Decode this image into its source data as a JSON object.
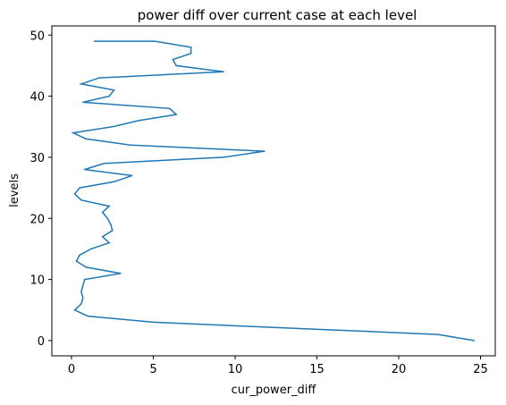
{
  "chart_data": {
    "type": "line",
    "title": "power diff over current case at each level",
    "xlabel": "cur_power_diff",
    "ylabel": "levels",
    "xlim": [
      -1.2,
      25.9
    ],
    "ylim": [
      -2.5,
      51.5
    ],
    "xticks": [
      0,
      5,
      10,
      15,
      20,
      25
    ],
    "yticks": [
      0,
      10,
      20,
      30,
      40,
      50
    ],
    "grid": false,
    "legend": "none",
    "series": [
      {
        "color": "#1f77b4",
        "x": [
          24.6,
          22.4,
          5.0,
          1.0,
          0.2,
          0.6,
          0.7,
          0.6,
          0.7,
          0.8,
          3.0,
          0.9,
          0.3,
          0.5,
          1.2,
          2.3,
          1.9,
          2.5,
          2.4,
          2.2,
          1.9,
          2.3,
          0.6,
          0.2,
          0.5,
          2.6,
          3.7,
          0.8,
          2.0,
          9.3,
          11.8,
          3.6,
          0.9,
          0.1,
          2.5,
          4.1,
          6.4,
          6.0,
          0.7,
          2.3,
          2.6,
          0.6,
          1.7,
          9.3,
          6.4,
          6.2,
          7.3,
          7.3,
          5.1,
          1.4
        ],
        "y": [
          0,
          1,
          3,
          4,
          5,
          6,
          7,
          8,
          9,
          10,
          11,
          12,
          13,
          14,
          15,
          16,
          17,
          18,
          19,
          20,
          21,
          22,
          23,
          24,
          25,
          26,
          27,
          28,
          29,
          30,
          31,
          32,
          33,
          34,
          35,
          36,
          37,
          38,
          39,
          40,
          41,
          42,
          43,
          44,
          45,
          46,
          47,
          48,
          49,
          49
        ]
      }
    ]
  }
}
